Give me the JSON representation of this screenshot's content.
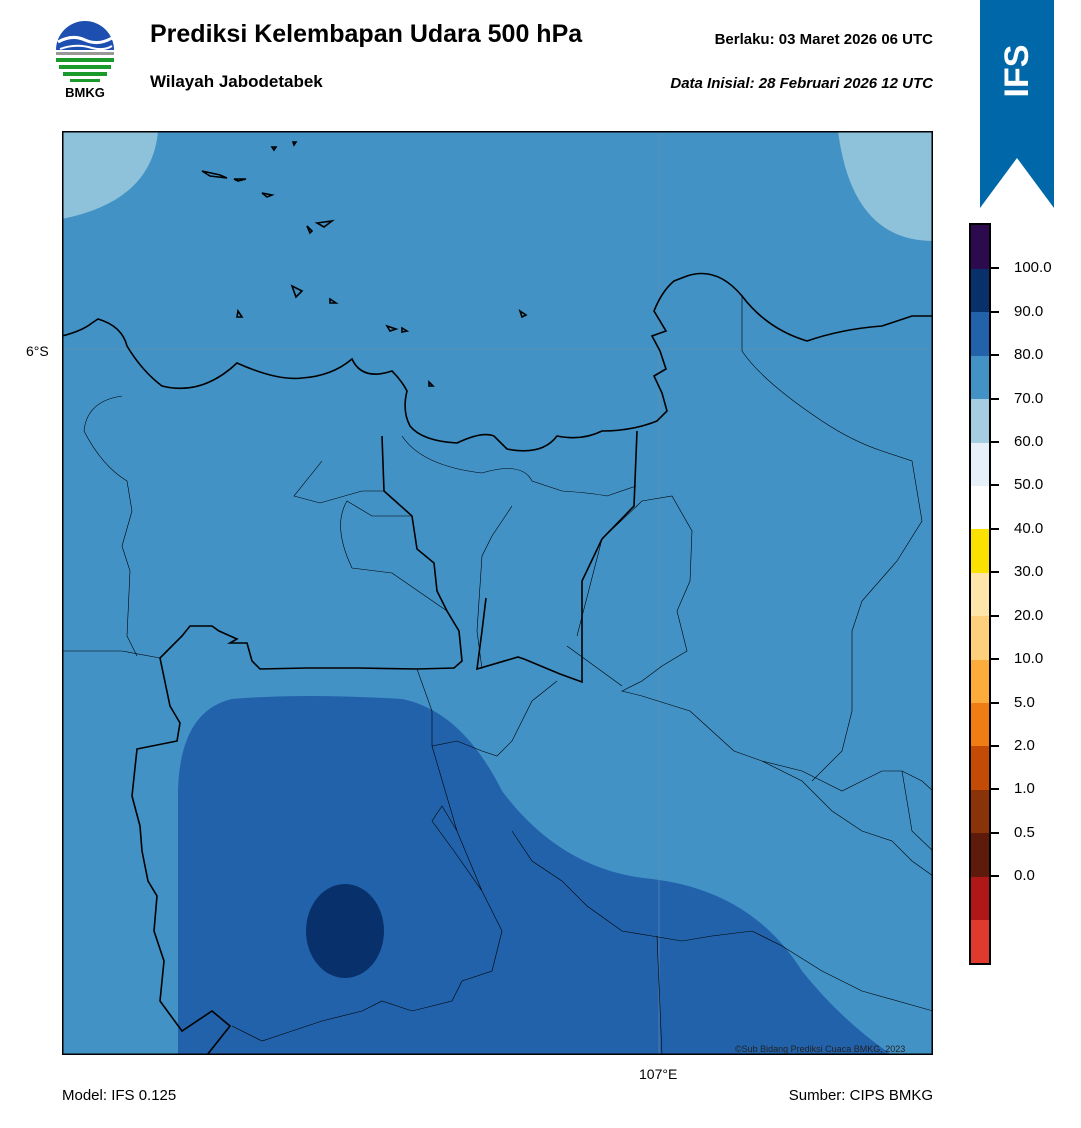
{
  "header": {
    "title": "Prediksi Kelembapan Udara 500 hPa",
    "subtitle": "Wilayah Jabodetabek",
    "valid": "Berlaku:  03 Maret 2026 06 UTC",
    "initial": "Data Inisial:  28 Februari 2026 12 UTC"
  },
  "logo": {
    "text": "BMKG",
    "icon": "bmkg-logo-icon"
  },
  "badge": {
    "text": "IFS",
    "color": "#0068a8"
  },
  "map": {
    "lat_label": "6°S",
    "lon_label": "107°E",
    "copyright": "©Sub Bidang Prediksi Cuaca BMKG, 2023",
    "colors": {
      "level_70_80": "#4292c6",
      "level_60_70": "#8ec1da",
      "level_80_90": "#2262ab",
      "level_90_100": "#08306b"
    }
  },
  "footer": {
    "model": "Model: IFS 0.125",
    "source": "Sumber: CIPS BMKG"
  },
  "colorbar": {
    "labels": [
      "100.0",
      "90.0",
      "80.0",
      "70.0",
      "60.0",
      "50.0",
      "40.0",
      "30.0",
      "20.0",
      "10.0",
      "5.0",
      "2.0",
      "1.0",
      "0.5",
      "0.0"
    ],
    "colors": [
      "#e03a2e",
      "#b01818",
      "#5e1a0a",
      "#8a3208",
      "#c44b06",
      "#f07d14",
      "#fdac3c",
      "#fed07c",
      "#fee6ab",
      "#fbe100",
      "#ffffff",
      "#e7f0f8",
      "#a5cde2",
      "#4292c6",
      "#2262ab",
      "#08306b",
      "#2c0a4e"
    ]
  }
}
